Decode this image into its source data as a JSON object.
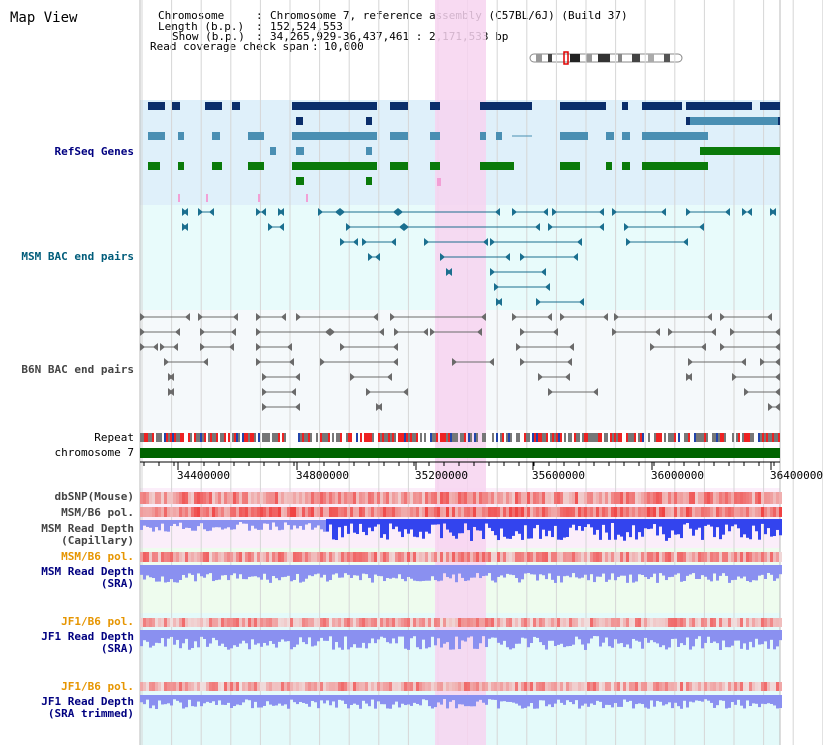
{
  "page": {
    "title": "Map View"
  },
  "info": {
    "chromosome_key": "Chromosome",
    "chromosome_val": "Chromosome 7, reference assembly (C57BL/6J) (Build 37)",
    "length_key": "Length (b.p.)",
    "length_val": "152,524,553",
    "show_key": "Show (b.p.)",
    "show_val": "34,265,929-36,437,461 : 2,171,533 bp",
    "coverage_key": "Read coverage check span",
    "coverage_val": "10,000"
  },
  "tracks": {
    "refseq": "RefSeq Genes",
    "msm_bac": "MSM BAC end pairs",
    "b6n_bac": "B6N BAC end pairs",
    "repeat": "Repeat",
    "chromosome": "chromosome 7",
    "dbsnp": "dbSNP(Mouse)",
    "msm_pol_cap": "MSM/B6 pol.",
    "msm_depth_cap_1": "MSM Read Depth",
    "msm_depth_cap_2": "(Capillary)",
    "msm_pol_sra": "MSM/B6 pol.",
    "msm_depth_sra_1": "MSM Read Depth",
    "msm_depth_sra_2": "(SRA)",
    "jf1_pol_sra": "JF1/B6 pol.",
    "jf1_depth_sra_1": "JF1 Read Depth",
    "jf1_depth_sra_2": "(SRA)",
    "jf1_pol_trim": "JF1/B6 pol.",
    "jf1_depth_trim_1": "JF1 Read Depth",
    "jf1_depth_trim_2": "(SRA trimmed)"
  },
  "axis": {
    "ticks": [
      "34400000",
      "34800000",
      "35200000",
      "35600000",
      "36000000",
      "36400000"
    ]
  },
  "colors": {
    "refseq_dark": "#0b2e6b",
    "refseq_mid": "#4a8fb3",
    "refseq_green": "#0a7a0a",
    "highlight": "#f7d3f0",
    "chromosome": "#006400",
    "depth_blue": "#3344ee",
    "depth_light": "#8a90f0",
    "snp_red": "#ee3333"
  }
}
